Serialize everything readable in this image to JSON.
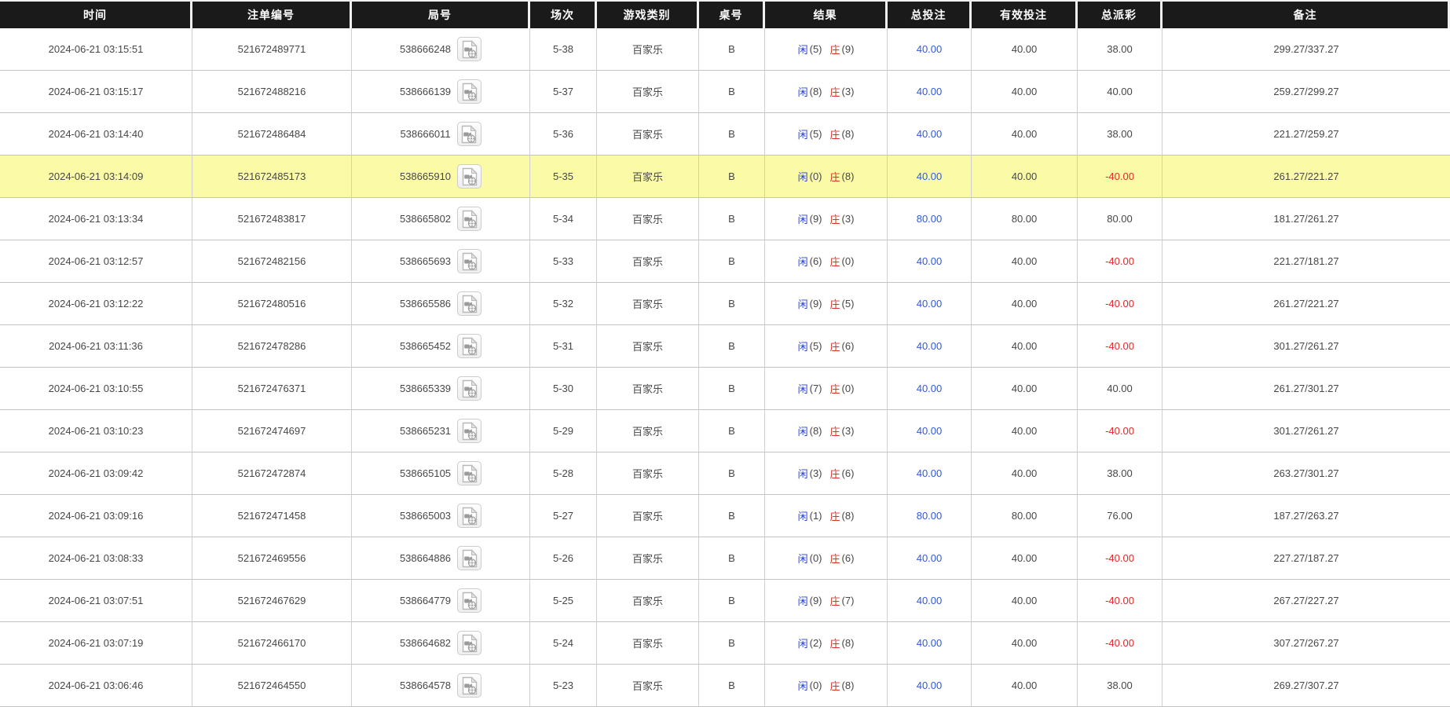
{
  "table": {
    "columns": [
      {
        "key": "time",
        "label": "时间"
      },
      {
        "key": "bet_id",
        "label": "注单编号"
      },
      {
        "key": "round_id",
        "label": "局号"
      },
      {
        "key": "session",
        "label": "场次"
      },
      {
        "key": "game_type",
        "label": "游戏类别"
      },
      {
        "key": "table_no",
        "label": "桌号"
      },
      {
        "key": "result",
        "label": "结果"
      },
      {
        "key": "total_bet",
        "label": "总投注"
      },
      {
        "key": "valid_bet",
        "label": "有效投注"
      },
      {
        "key": "total_payout",
        "label": "总派彩"
      },
      {
        "key": "remark",
        "label": "备注"
      }
    ],
    "result_labels": {
      "player": "闲",
      "banker": "庄"
    },
    "rows": [
      {
        "time": "2024-06-21 03:15:51",
        "bet_id": "521672489771",
        "round_id": "538666248",
        "session": "5-38",
        "game_type": "百家乐",
        "table_no": "B",
        "player_pts": "(5)",
        "banker_pts": "(9)",
        "total_bet": "40.00",
        "valid_bet": "40.00",
        "total_payout": "38.00",
        "payout_negative": false,
        "remark": "299.27/337.27",
        "highlight": false
      },
      {
        "time": "2024-06-21 03:15:17",
        "bet_id": "521672488216",
        "round_id": "538666139",
        "session": "5-37",
        "game_type": "百家乐",
        "table_no": "B",
        "player_pts": "(8)",
        "banker_pts": "(3)",
        "total_bet": "40.00",
        "valid_bet": "40.00",
        "total_payout": "40.00",
        "payout_negative": false,
        "remark": "259.27/299.27",
        "highlight": false
      },
      {
        "time": "2024-06-21 03:14:40",
        "bet_id": "521672486484",
        "round_id": "538666011",
        "session": "5-36",
        "game_type": "百家乐",
        "table_no": "B",
        "player_pts": "(5)",
        "banker_pts": "(8)",
        "total_bet": "40.00",
        "valid_bet": "40.00",
        "total_payout": "38.00",
        "payout_negative": false,
        "remark": "221.27/259.27",
        "highlight": false
      },
      {
        "time": "2024-06-21 03:14:09",
        "bet_id": "521672485173",
        "round_id": "538665910",
        "session": "5-35",
        "game_type": "百家乐",
        "table_no": "B",
        "player_pts": "(0)",
        "banker_pts": "(8)",
        "total_bet": "40.00",
        "valid_bet": "40.00",
        "total_payout": "-40.00",
        "payout_negative": true,
        "remark": "261.27/221.27",
        "highlight": true
      },
      {
        "time": "2024-06-21 03:13:34",
        "bet_id": "521672483817",
        "round_id": "538665802",
        "session": "5-34",
        "game_type": "百家乐",
        "table_no": "B",
        "player_pts": "(9)",
        "banker_pts": "(3)",
        "total_bet": "80.00",
        "valid_bet": "80.00",
        "total_payout": "80.00",
        "payout_negative": false,
        "remark": "181.27/261.27",
        "highlight": false
      },
      {
        "time": "2024-06-21 03:12:57",
        "bet_id": "521672482156",
        "round_id": "538665693",
        "session": "5-33",
        "game_type": "百家乐",
        "table_no": "B",
        "player_pts": "(6)",
        "banker_pts": "(0)",
        "total_bet": "40.00",
        "valid_bet": "40.00",
        "total_payout": "-40.00",
        "payout_negative": true,
        "remark": "221.27/181.27",
        "highlight": false
      },
      {
        "time": "2024-06-21 03:12:22",
        "bet_id": "521672480516",
        "round_id": "538665586",
        "session": "5-32",
        "game_type": "百家乐",
        "table_no": "B",
        "player_pts": "(9)",
        "banker_pts": "(5)",
        "total_bet": "40.00",
        "valid_bet": "40.00",
        "total_payout": "-40.00",
        "payout_negative": true,
        "remark": "261.27/221.27",
        "highlight": false
      },
      {
        "time": "2024-06-21 03:11:36",
        "bet_id": "521672478286",
        "round_id": "538665452",
        "session": "5-31",
        "game_type": "百家乐",
        "table_no": "B",
        "player_pts": "(5)",
        "banker_pts": "(6)",
        "total_bet": "40.00",
        "valid_bet": "40.00",
        "total_payout": "-40.00",
        "payout_negative": true,
        "remark": "301.27/261.27",
        "highlight": false
      },
      {
        "time": "2024-06-21 03:10:55",
        "bet_id": "521672476371",
        "round_id": "538665339",
        "session": "5-30",
        "game_type": "百家乐",
        "table_no": "B",
        "player_pts": "(7)",
        "banker_pts": "(0)",
        "total_bet": "40.00",
        "valid_bet": "40.00",
        "total_payout": "40.00",
        "payout_negative": false,
        "remark": "261.27/301.27",
        "highlight": false
      },
      {
        "time": "2024-06-21 03:10:23",
        "bet_id": "521672474697",
        "round_id": "538665231",
        "session": "5-29",
        "game_type": "百家乐",
        "table_no": "B",
        "player_pts": "(8)",
        "banker_pts": "(3)",
        "total_bet": "40.00",
        "valid_bet": "40.00",
        "total_payout": "-40.00",
        "payout_negative": true,
        "remark": "301.27/261.27",
        "highlight": false
      },
      {
        "time": "2024-06-21 03:09:42",
        "bet_id": "521672472874",
        "round_id": "538665105",
        "session": "5-28",
        "game_type": "百家乐",
        "table_no": "B",
        "player_pts": "(3)",
        "banker_pts": "(6)",
        "total_bet": "40.00",
        "valid_bet": "40.00",
        "total_payout": "38.00",
        "payout_negative": false,
        "remark": "263.27/301.27",
        "highlight": false
      },
      {
        "time": "2024-06-21 03:09:16",
        "bet_id": "521672471458",
        "round_id": "538665003",
        "session": "5-27",
        "game_type": "百家乐",
        "table_no": "B",
        "player_pts": "(1)",
        "banker_pts": "(8)",
        "total_bet": "80.00",
        "valid_bet": "80.00",
        "total_payout": "76.00",
        "payout_negative": false,
        "remark": "187.27/263.27",
        "highlight": false
      },
      {
        "time": "2024-06-21 03:08:33",
        "bet_id": "521672469556",
        "round_id": "538664886",
        "session": "5-26",
        "game_type": "百家乐",
        "table_no": "B",
        "player_pts": "(0)",
        "banker_pts": "(6)",
        "total_bet": "40.00",
        "valid_bet": "40.00",
        "total_payout": "-40.00",
        "payout_negative": true,
        "remark": "227.27/187.27",
        "highlight": false
      },
      {
        "time": "2024-06-21 03:07:51",
        "bet_id": "521672467629",
        "round_id": "538664779",
        "session": "5-25",
        "game_type": "百家乐",
        "table_no": "B",
        "player_pts": "(9)",
        "banker_pts": "(7)",
        "total_bet": "40.00",
        "valid_bet": "40.00",
        "total_payout": "-40.00",
        "payout_negative": true,
        "remark": "267.27/227.27",
        "highlight": false
      },
      {
        "time": "2024-06-21 03:07:19",
        "bet_id": "521672466170",
        "round_id": "538664682",
        "session": "5-24",
        "game_type": "百家乐",
        "table_no": "B",
        "player_pts": "(2)",
        "banker_pts": "(8)",
        "total_bet": "40.00",
        "valid_bet": "40.00",
        "total_payout": "-40.00",
        "payout_negative": true,
        "remark": "307.27/267.27",
        "highlight": false
      },
      {
        "time": "2024-06-21 03:06:46",
        "bet_id": "521672464550",
        "round_id": "538664578",
        "session": "5-23",
        "game_type": "百家乐",
        "table_no": "B",
        "player_pts": "(0)",
        "banker_pts": "(8)",
        "total_bet": "40.00",
        "valid_bet": "40.00",
        "total_payout": "38.00",
        "payout_negative": false,
        "remark": "269.27/307.27",
        "highlight": false
      }
    ]
  },
  "icons": {
    "round_replay": "video-replay-icon"
  },
  "colors": {
    "header_bg": "#1a1a1a",
    "highlight_row": "#fbfba7",
    "bet_link_blue": "#2e5bd7",
    "player_blue": "#2440dd",
    "banker_red": "#d93027",
    "negative_red": "#e02b2b"
  }
}
